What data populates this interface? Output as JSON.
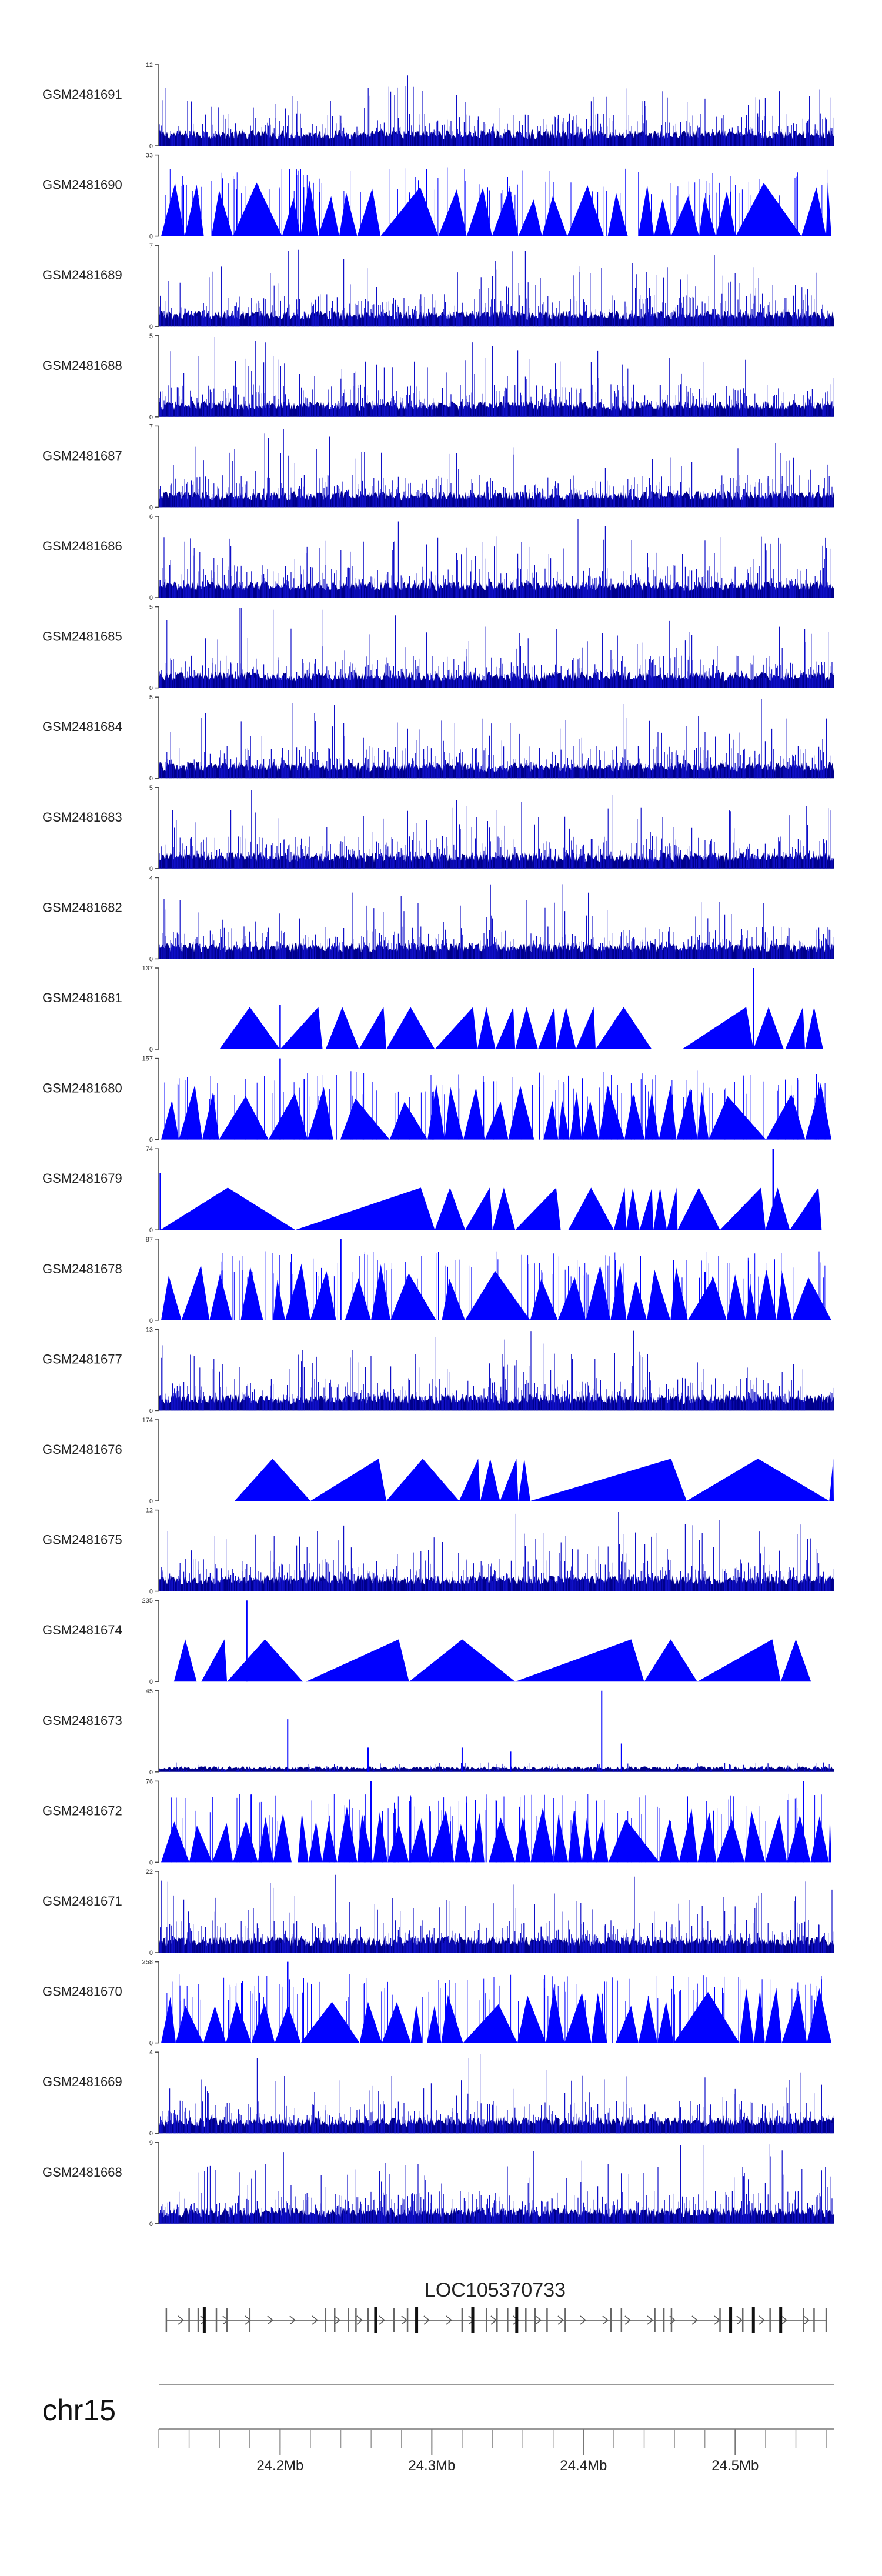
{
  "chart_data": {
    "type": "area",
    "title": "",
    "xlabel": "",
    "ylabel": "",
    "colors": {
      "signal": "#0000ff",
      "axis": "#444444",
      "gene": "#555555"
    },
    "x_range_mb": [
      24.12,
      24.565
    ],
    "tracks": [
      {
        "name": "GSM2481691",
        "ymax": "12",
        "ymin": "0",
        "pattern": "dense"
      },
      {
        "name": "GSM2481690",
        "ymax": "33",
        "ymin": "0",
        "pattern": "triangles"
      },
      {
        "name": "GSM2481689",
        "ymax": "7",
        "ymin": "0",
        "pattern": "dense"
      },
      {
        "name": "GSM2481688",
        "ymax": "5",
        "ymin": "0",
        "pattern": "dense"
      },
      {
        "name": "GSM2481687",
        "ymax": "7",
        "ymin": "0",
        "pattern": "dense"
      },
      {
        "name": "GSM2481686",
        "ymax": "6",
        "ymin": "0",
        "pattern": "dense"
      },
      {
        "name": "GSM2481685",
        "ymax": "5",
        "ymin": "0",
        "pattern": "dense"
      },
      {
        "name": "GSM2481684",
        "ymax": "5",
        "ymin": "0",
        "pattern": "dense"
      },
      {
        "name": "GSM2481683",
        "ymax": "5",
        "ymin": "0",
        "pattern": "dense"
      },
      {
        "name": "GSM2481682",
        "ymax": "4",
        "ymin": "0",
        "pattern": "dense"
      },
      {
        "name": "GSM2481681",
        "ymax": "137",
        "ymin": "0",
        "pattern": "sparse",
        "segments": [
          [
            24.16,
            24.2
          ],
          [
            24.2,
            24.228
          ],
          [
            24.23,
            24.252
          ],
          [
            24.252,
            24.27
          ],
          [
            24.27,
            24.302
          ],
          [
            24.302,
            24.33
          ],
          [
            24.33,
            24.342
          ],
          [
            24.342,
            24.355
          ],
          [
            24.355,
            24.37
          ],
          [
            24.37,
            24.382
          ],
          [
            24.382,
            24.395
          ],
          [
            24.395,
            24.408
          ],
          [
            24.408,
            24.445
          ],
          [
            24.465,
            24.512
          ],
          [
            24.512,
            24.532
          ],
          [
            24.533,
            24.546
          ],
          [
            24.546,
            24.558
          ]
        ],
        "peaks": [
          [
            24.2,
            0.55
          ],
          [
            24.512,
            1.0
          ]
        ]
      },
      {
        "name": "GSM2481680",
        "ymax": "157",
        "ymin": "0",
        "pattern": "triangles",
        "peaks": [
          [
            24.2,
            1.0
          ],
          [
            24.216,
            0.75
          ]
        ]
      },
      {
        "name": "GSM2481679",
        "ymax": "74",
        "ymin": "0",
        "pattern": "sparse",
        "segments": [
          [
            24.121,
            24.21
          ],
          [
            24.21,
            24.302
          ],
          [
            24.302,
            24.322
          ],
          [
            24.322,
            24.34
          ],
          [
            24.34,
            24.355
          ],
          [
            24.355,
            24.385
          ],
          [
            24.39,
            24.42
          ],
          [
            24.42,
            24.428
          ],
          [
            24.428,
            24.437
          ],
          [
            24.437,
            24.446
          ],
          [
            24.446,
            24.455
          ],
          [
            24.455,
            24.462
          ],
          [
            24.462,
            24.49
          ],
          [
            24.49,
            24.52
          ],
          [
            24.52,
            24.536
          ],
          [
            24.536,
            24.557
          ]
        ],
        "peaks": [
          [
            24.121,
            0.7
          ],
          [
            24.525,
            1.0
          ]
        ]
      },
      {
        "name": "GSM2481678",
        "ymax": "87",
        "ymin": "0",
        "pattern": "triangles",
        "peaks": [
          [
            24.24,
            1.0
          ],
          [
            24.48,
            0.6
          ]
        ]
      },
      {
        "name": "GSM2481677",
        "ymax": "13",
        "ymin": "0",
        "pattern": "dense"
      },
      {
        "name": "GSM2481676",
        "ymax": "174",
        "ymin": "0",
        "pattern": "sparse",
        "segments": [
          [
            24.17,
            24.22
          ],
          [
            24.22,
            24.27
          ],
          [
            24.27,
            24.318
          ],
          [
            24.318,
            24.332
          ],
          [
            24.332,
            24.345
          ],
          [
            24.345,
            24.357
          ],
          [
            24.357,
            24.365
          ],
          [
            24.365,
            24.468
          ],
          [
            24.468,
            24.562
          ],
          [
            24.562,
            24.565
          ]
        ],
        "peaks": []
      },
      {
        "name": "GSM2481675",
        "ymax": "12",
        "ymin": "0",
        "pattern": "dense"
      },
      {
        "name": "GSM2481674",
        "ymax": "235",
        "ymin": "0",
        "pattern": "sparse",
        "segments": [
          [
            24.13,
            24.145
          ],
          [
            24.148,
            24.165
          ],
          [
            24.165,
            24.215
          ],
          [
            24.217,
            24.285
          ],
          [
            24.285,
            24.355
          ],
          [
            24.355,
            24.44
          ],
          [
            24.44,
            24.475
          ],
          [
            24.475,
            24.53
          ],
          [
            24.53,
            24.55
          ]
        ],
        "peaks": [
          [
            24.178,
            1.0
          ]
        ]
      },
      {
        "name": "GSM2481673",
        "ymax": "45",
        "ymin": "0",
        "pattern": "lowdense",
        "peaks": [
          [
            24.205,
            0.65
          ],
          [
            24.258,
            0.3
          ],
          [
            24.32,
            0.3
          ],
          [
            24.352,
            0.25
          ],
          [
            24.412,
            1.0
          ],
          [
            24.425,
            0.35
          ]
        ]
      },
      {
        "name": "GSM2481672",
        "ymax": "76",
        "ymin": "0",
        "pattern": "triangles",
        "peaks": [
          [
            24.26,
            1.0
          ],
          [
            24.545,
            1.0
          ]
        ]
      },
      {
        "name": "GSM2481671",
        "ymax": "22",
        "ymin": "0",
        "pattern": "dense"
      },
      {
        "name": "GSM2481670",
        "ymax": "258",
        "ymin": "0",
        "pattern": "triangles",
        "peaks": [
          [
            24.205,
            1.0
          ]
        ]
      },
      {
        "name": "GSM2481669",
        "ymax": "4",
        "ymin": "0",
        "pattern": "dense"
      },
      {
        "name": "GSM2481668",
        "ymax": "9",
        "ymin": "0",
        "pattern": "dense"
      }
    ],
    "gene_track": {
      "name": "LOC105370733",
      "start_mb": 24.125,
      "end_mb": 24.56,
      "exons_mb": [
        24.125,
        24.14,
        24.146,
        24.15,
        24.158,
        24.165,
        24.18,
        24.23,
        24.236,
        24.245,
        24.25,
        24.258,
        24.263,
        24.275,
        24.284,
        24.29,
        24.32,
        24.327,
        24.336,
        24.343,
        24.35,
        24.356,
        24.362,
        24.368,
        24.376,
        24.388,
        24.418,
        24.425,
        24.447,
        24.453,
        24.458,
        24.49,
        24.497,
        24.505,
        24.512,
        24.523,
        24.53,
        24.545,
        24.552,
        24.56
      ],
      "thick_exons_mb": [
        24.15,
        24.263,
        24.29,
        24.327,
        24.356,
        24.497,
        24.512,
        24.53
      ]
    },
    "genome_axis": {
      "chromosome": "chr15",
      "tick_labels": [
        {
          "mb": 24.2,
          "label": "24.2Mb"
        },
        {
          "mb": 24.3,
          "label": "24.3Mb"
        },
        {
          "mb": 24.4,
          "label": "24.4Mb"
        },
        {
          "mb": 24.5,
          "label": "24.5Mb"
        }
      ],
      "minor_ticks_mb": [
        24.12,
        24.14,
        24.16,
        24.18,
        24.2,
        24.22,
        24.24,
        24.26,
        24.28,
        24.3,
        24.32,
        24.34,
        24.36,
        24.38,
        24.4,
        24.42,
        24.44,
        24.46,
        24.48,
        24.5,
        24.52,
        24.54,
        24.56
      ]
    }
  }
}
